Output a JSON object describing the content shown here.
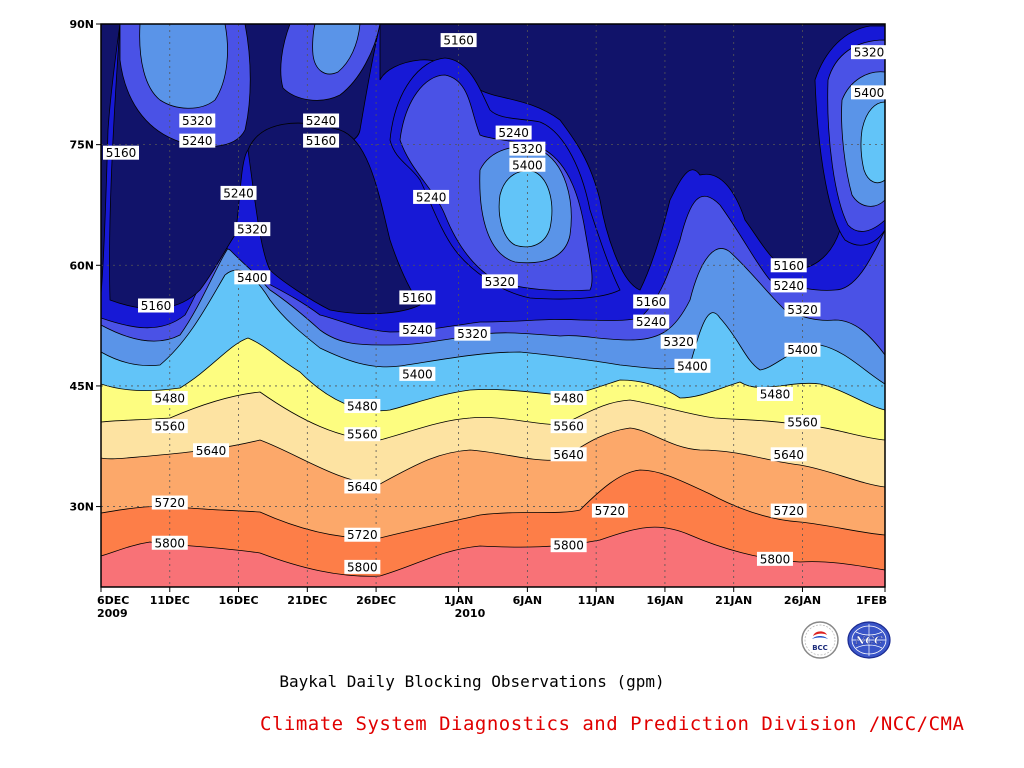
{
  "chart_data": {
    "type": "heatmap",
    "title": "Baykal Daily Blocking Observations (gpm)",
    "xlabel": "",
    "ylabel": "",
    "x_ticks": [
      {
        "label": "6DEC",
        "sub": "2009",
        "date": "2009-12-06"
      },
      {
        "label": "11DEC",
        "sub": "",
        "date": "2009-12-11"
      },
      {
        "label": "16DEC",
        "sub": "",
        "date": "2009-12-16"
      },
      {
        "label": "21DEC",
        "sub": "",
        "date": "2009-12-21"
      },
      {
        "label": "26DEC",
        "sub": "",
        "date": "2009-12-26"
      },
      {
        "label": "1JAN",
        "sub": "2010",
        "date": "2010-01-01"
      },
      {
        "label": "6JAN",
        "sub": "",
        "date": "2010-01-06"
      },
      {
        "label": "11JAN",
        "sub": "",
        "date": "2010-01-11"
      },
      {
        "label": "16JAN",
        "sub": "",
        "date": "2010-01-16"
      },
      {
        "label": "21JAN",
        "sub": "",
        "date": "2010-01-21"
      },
      {
        "label": "26JAN",
        "sub": "",
        "date": "2010-01-26"
      },
      {
        "label": "1FEB",
        "sub": "",
        "date": "2010-02-01"
      }
    ],
    "y_ticks": [
      {
        "label": "30N",
        "lat": 30
      },
      {
        "label": "45N",
        "lat": 45
      },
      {
        "label": "60N",
        "lat": 60
      },
      {
        "label": "75N",
        "lat": 75
      },
      {
        "label": "90N",
        "lat": 90
      }
    ],
    "xlim": [
      "2009-12-06",
      "2010-02-01"
    ],
    "ylim": [
      20,
      90
    ],
    "grid": true,
    "contour_levels": [
      5160,
      5240,
      5320,
      5400,
      5480,
      5560,
      5640,
      5720,
      5800
    ],
    "fill_colors": [
      "#11136a",
      "#1719d6",
      "#4a52e6",
      "#5a94e8",
      "#62c4f8",
      "#fdfd80",
      "#fde3a2",
      "#fca86a",
      "#fd7e48",
      "#f87277"
    ],
    "contour_labels": [
      {
        "value": "5160",
        "date": "2009-12-06",
        "lat": 74
      },
      {
        "value": "5320",
        "date": "2009-12-13",
        "lat": 78
      },
      {
        "value": "5240",
        "date": "2009-12-13",
        "lat": 75.5
      },
      {
        "value": "5240",
        "date": "2009-12-22",
        "lat": 78
      },
      {
        "value": "5160",
        "date": "2009-12-22",
        "lat": 75.5
      },
      {
        "value": "5240",
        "date": "2009-12-16",
        "lat": 69
      },
      {
        "value": "5320",
        "date": "2009-12-17",
        "lat": 64.5
      },
      {
        "value": "5400",
        "date": "2009-12-17",
        "lat": 58.5
      },
      {
        "value": "5160",
        "date": "2009-12-10",
        "lat": 55
      },
      {
        "value": "5160",
        "date": "2010-01-01",
        "lat": 88
      },
      {
        "value": "5240",
        "date": "2009-12-30",
        "lat": 68.5
      },
      {
        "value": "5240",
        "date": "2010-01-05",
        "lat": 76.5
      },
      {
        "value": "5320",
        "date": "2010-01-06",
        "lat": 74.5
      },
      {
        "value": "5400",
        "date": "2010-01-06",
        "lat": 72.5
      },
      {
        "value": "5320",
        "date": "2010-01-04",
        "lat": 58
      },
      {
        "value": "5160",
        "date": "2009-12-29",
        "lat": 56
      },
      {
        "value": "5240",
        "date": "2009-12-29",
        "lat": 52
      },
      {
        "value": "5320",
        "date": "2010-01-02",
        "lat": 51.5
      },
      {
        "value": "5400",
        "date": "2009-12-29",
        "lat": 46.5
      },
      {
        "value": "5480",
        "date": "2009-12-25",
        "lat": 42.5
      },
      {
        "value": "5560",
        "date": "2009-12-25",
        "lat": 39
      },
      {
        "value": "5640",
        "date": "2009-12-25",
        "lat": 32.5
      },
      {
        "value": "5720",
        "date": "2009-12-25",
        "lat": 26.5
      },
      {
        "value": "5800",
        "date": "2009-12-25",
        "lat": 22.5
      },
      {
        "value": "5480",
        "date": "2009-12-11",
        "lat": 43.5
      },
      {
        "value": "5560",
        "date": "2009-12-11",
        "lat": 40
      },
      {
        "value": "5640",
        "date": "2009-12-14",
        "lat": 37
      },
      {
        "value": "5720",
        "date": "2009-12-11",
        "lat": 30.5
      },
      {
        "value": "5800",
        "date": "2009-12-11",
        "lat": 25.5
      },
      {
        "value": "5480",
        "date": "2010-01-09",
        "lat": 43.5
      },
      {
        "value": "5560",
        "date": "2010-01-09",
        "lat": 40
      },
      {
        "value": "5640",
        "date": "2010-01-09",
        "lat": 36.5
      },
      {
        "value": "5720",
        "date": "2010-01-12",
        "lat": 29.5
      },
      {
        "value": "5800",
        "date": "2010-01-09",
        "lat": 25.2
      },
      {
        "value": "5160",
        "date": "2010-01-15",
        "lat": 55.5
      },
      {
        "value": "5240",
        "date": "2010-01-15",
        "lat": 53
      },
      {
        "value": "5320",
        "date": "2010-01-17",
        "lat": 50.5
      },
      {
        "value": "5400",
        "date": "2010-01-18",
        "lat": 47.5
      },
      {
        "value": "5160",
        "date": "2010-01-25",
        "lat": 60
      },
      {
        "value": "5240",
        "date": "2010-01-25",
        "lat": 57.5
      },
      {
        "value": "5320",
        "date": "2010-01-26",
        "lat": 54.5
      },
      {
        "value": "5400",
        "date": "2010-01-26",
        "lat": 49.5
      },
      {
        "value": "5480",
        "date": "2010-01-24",
        "lat": 44
      },
      {
        "value": "5560",
        "date": "2010-01-26",
        "lat": 40.5
      },
      {
        "value": "5640",
        "date": "2010-01-25",
        "lat": 36.5
      },
      {
        "value": "5720",
        "date": "2010-01-25",
        "lat": 29.5
      },
      {
        "value": "5800",
        "date": "2010-01-24",
        "lat": 23.5
      },
      {
        "value": "5320",
        "date": "2010-01-31",
        "lat": 86.5
      },
      {
        "value": "5400",
        "date": "2010-01-31",
        "lat": 81.5
      }
    ]
  },
  "footer": {
    "credit": "Climate System Diagnostics and Prediction Division /NCC/CMA",
    "logos": [
      {
        "name": "bcc-logo",
        "text": "BCC"
      },
      {
        "name": "ncc-logo",
        "text": "NCC"
      }
    ]
  }
}
